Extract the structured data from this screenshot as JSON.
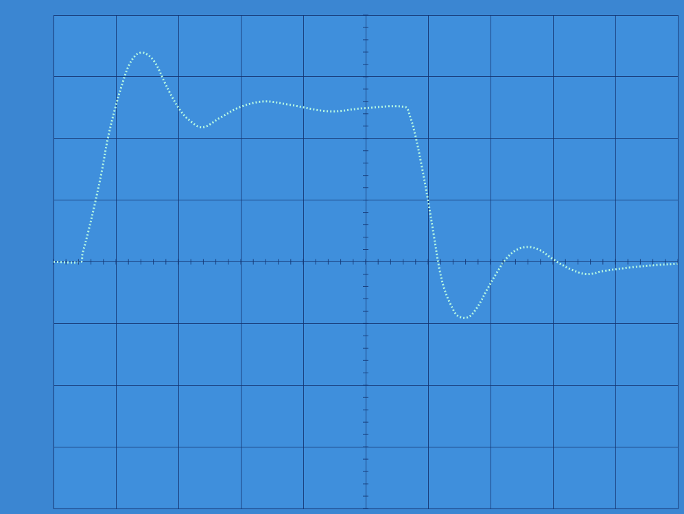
{
  "chart_data": {
    "type": "line",
    "line_style": "dotted",
    "marker": "none",
    "color": "#b6f7e2",
    "grid": true,
    "tick_labels": false,
    "x": [
      0,
      0.44,
      0.46,
      0.55,
      0.66,
      0.77,
      0.87,
      0.99,
      1.1,
      1.21,
      1.34,
      1.47,
      1.62,
      1.78,
      1.89,
      2.02,
      2.16,
      2.38,
      2.66,
      2.99,
      3.37,
      3.76,
      4.42,
      4.97,
      5.63,
      5.71,
      5.8,
      5.9,
      6.0,
      6.09,
      6.18,
      6.26,
      6.37,
      6.48,
      6.64,
      6.78,
      6.95,
      7.11,
      7.25,
      7.41,
      7.58,
      7.77,
      7.99,
      8.26,
      8.54,
      8.81,
      9.25,
      9.69,
      10.0
    ],
    "values": [
      0,
      0,
      0.11,
      0.46,
      0.93,
      1.45,
      2.0,
      2.5,
      2.88,
      3.19,
      3.37,
      3.38,
      3.24,
      2.91,
      2.69,
      2.47,
      2.31,
      2.18,
      2.33,
      2.51,
      2.6,
      2.55,
      2.44,
      2.49,
      2.51,
      2.36,
      2.03,
      1.54,
      0.99,
      0.44,
      -0.11,
      -0.44,
      -0.71,
      -0.88,
      -0.9,
      -0.75,
      -0.44,
      -0.16,
      0.05,
      0.19,
      0.24,
      0.2,
      0.05,
      -0.11,
      -0.2,
      -0.15,
      -0.09,
      -0.05,
      -0.03
    ],
    "xlim": [
      0,
      10
    ],
    "xticks": [
      0,
      1,
      2,
      3,
      4,
      5,
      6,
      7,
      8,
      9,
      10
    ],
    "ylim": [
      -4,
      4
    ],
    "yticks": [
      -4,
      -3,
      -2,
      -1,
      0,
      1,
      2,
      3,
      4
    ]
  }
}
